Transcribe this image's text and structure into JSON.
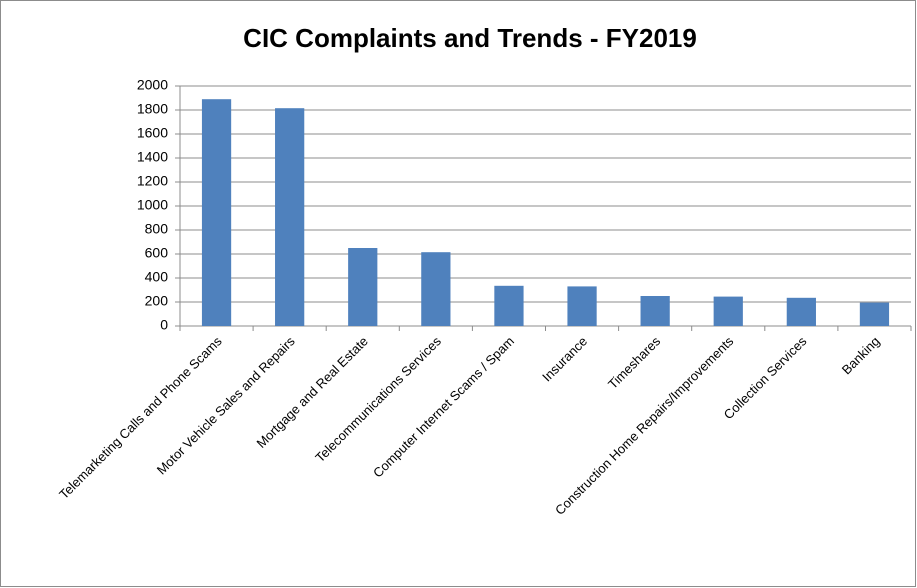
{
  "chart_data": {
    "type": "bar",
    "title": "CIC Complaints and Trends - FY2019",
    "categories": [
      "Telemarketing Calls and Phone Scams",
      "Motor Vehicle Sales and Repairs",
      "Mortgage and Real Estate",
      "Telecommunications Services",
      "Computer Internet Scams / Spam",
      "Insurance",
      "Timeshares",
      "Construction Home Repairs/Improvements",
      "Collection Services",
      "Banking"
    ],
    "values": [
      1890,
      1815,
      650,
      615,
      335,
      330,
      250,
      245,
      235,
      195
    ],
    "color": "#4f81bd",
    "ylim": [
      0,
      2000
    ],
    "yticks": [
      0,
      200,
      400,
      600,
      800,
      1000,
      1200,
      1400,
      1600,
      1800,
      2000
    ],
    "grid": true
  }
}
